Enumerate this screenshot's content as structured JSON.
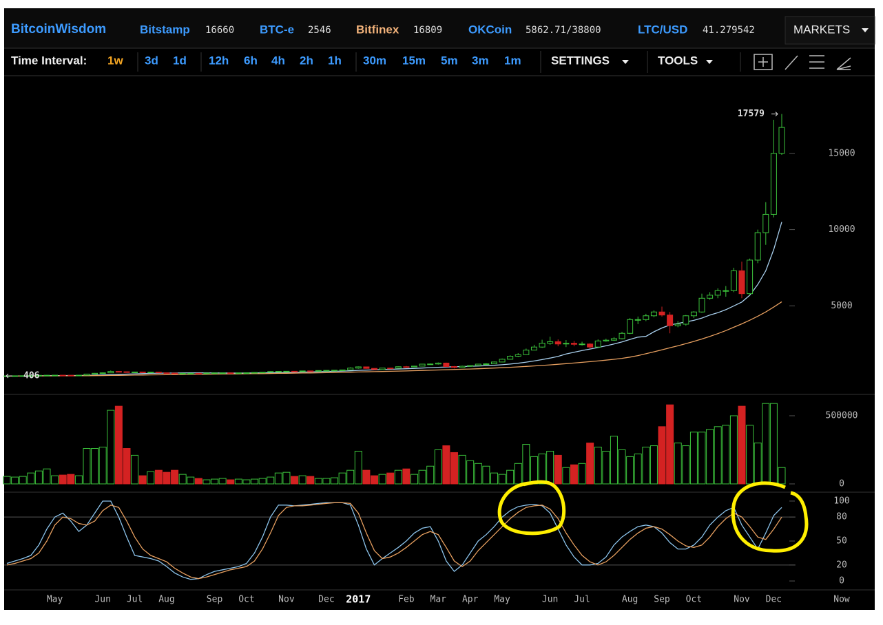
{
  "header": {
    "brand": "BitcoinWisdom",
    "tickers": [
      {
        "name": "Bitstamp",
        "price": 16660
      },
      {
        "name": "BTC-e",
        "price": 2546
      },
      {
        "name": "Bitfinex",
        "price": 16809
      },
      {
        "name": "OKCoin",
        "price": "5862.71/38800"
      },
      {
        "name": "LTC/USD",
        "price": 41.279542
      }
    ],
    "markets": "MARKETS"
  },
  "toolbar": {
    "label": "Time Interval:",
    "intervals": [
      "1w",
      "3d",
      "1d",
      "12h",
      "6h",
      "4h",
      "2h",
      "1h",
      "30m",
      "15m",
      "5m",
      "3m",
      "1m"
    ],
    "settings": "SETTINGS",
    "tools": "TOOLS"
  },
  "chart_data": [
    {
      "type": "candlestick",
      "up_color": "#3cc43c",
      "down_color": "#d42222",
      "ylim": [
        -760,
        20000
      ],
      "yticks": [
        5000,
        10000,
        15000
      ],
      "last_label": 17579,
      "first_label": 406,
      "open": [
        405,
        410,
        416,
        420,
        426,
        445,
        452,
        455,
        450,
        445,
        455,
        530,
        580,
        610,
        700,
        680,
        660,
        665,
        650,
        655,
        610,
        590,
        570,
        575,
        578,
        572,
        598,
        606,
        608,
        604,
        608,
        614,
        635,
        650,
        695,
        705,
        712,
        705,
        735,
        730,
        760,
        770,
        780,
        800,
        920,
        1000,
        900,
        825,
        920,
        915,
        1010,
        1000,
        1050,
        1180,
        1190,
        1250,
        1020,
        960,
        1040,
        1090,
        1180,
        1200,
        1320,
        1500,
        1700,
        1800,
        2100,
        2300,
        2550,
        2650,
        2500,
        2550,
        2480,
        2500,
        2300,
        2700,
        2750,
        2850,
        3200,
        4100,
        4100,
        4350,
        4600,
        4400,
        3700,
        3800,
        4350,
        4600,
        5500,
        5700,
        6000,
        6000,
        7300,
        5800,
        8000,
        9800,
        11000,
        15000
      ],
      "high": [
        420,
        422,
        425,
        430,
        460,
        465,
        462,
        462,
        458,
        465,
        545,
        600,
        640,
        760,
        720,
        690,
        680,
        675,
        665,
        660,
        615,
        600,
        585,
        590,
        585,
        610,
        615,
        615,
        612,
        615,
        620,
        640,
        660,
        715,
        720,
        725,
        720,
        745,
        750,
        775,
        780,
        790,
        815,
        970,
        1030,
        1020,
        910,
        930,
        935,
        1030,
        1060,
        1070,
        1200,
        1220,
        1290,
        1280,
        1060,
        1080,
        1110,
        1200,
        1240,
        1350,
        1550,
        1760,
        1900,
        2200,
        2450,
        2780,
        2980,
        2800,
        2760,
        2700,
        2650,
        2550,
        2800,
        2850,
        2950,
        3300,
        4200,
        4300,
        4480,
        4700,
        4950,
        4600,
        4000,
        4400,
        4650,
        5800,
        5900,
        6150,
        6300,
        7500,
        7900,
        8100,
        10000,
        11800,
        17200,
        17579
      ],
      "low": [
        400,
        404,
        412,
        415,
        420,
        440,
        445,
        440,
        438,
        440,
        450,
        520,
        570,
        600,
        640,
        640,
        650,
        645,
        645,
        600,
        585,
        560,
        560,
        570,
        565,
        570,
        595,
        600,
        598,
        600,
        605,
        610,
        630,
        645,
        690,
        700,
        695,
        700,
        725,
        725,
        755,
        765,
        775,
        790,
        880,
        880,
        800,
        810,
        900,
        905,
        990,
        985,
        1040,
        1160,
        1150,
        1000,
        900,
        950,
        1030,
        1080,
        1160,
        1190,
        1300,
        1480,
        1650,
        1780,
        2080,
        2250,
        2450,
        2350,
        2300,
        2350,
        2400,
        2200,
        2250,
        2650,
        2700,
        2800,
        3150,
        3800,
        4000,
        4250,
        4300,
        3200,
        3600,
        3700,
        4200,
        4550,
        5400,
        5500,
        5600,
        5900,
        5500,
        5700,
        7800,
        9000,
        10800,
        14900
      ],
      "close": [
        410,
        416,
        420,
        426,
        445,
        452,
        455,
        450,
        445,
        455,
        530,
        580,
        610,
        700,
        680,
        660,
        665,
        650,
        655,
        610,
        590,
        570,
        575,
        578,
        572,
        598,
        606,
        608,
        604,
        608,
        614,
        635,
        650,
        695,
        705,
        712,
        705,
        735,
        730,
        760,
        770,
        780,
        800,
        920,
        1000,
        900,
        825,
        920,
        915,
        1010,
        1000,
        1050,
        1180,
        1190,
        1250,
        1020,
        960,
        1040,
        1090,
        1180,
        1200,
        1320,
        1500,
        1700,
        1800,
        2100,
        2300,
        2550,
        2650,
        2500,
        2550,
        2480,
        2500,
        2300,
        2700,
        2750,
        2850,
        3200,
        4100,
        4100,
        4350,
        4600,
        4400,
        3700,
        3800,
        4350,
        4600,
        5500,
        5700,
        6000,
        6000,
        7300,
        5800,
        8000,
        9800,
        11000,
        15000,
        16700
      ],
      "lines": [
        {
          "color": "#a9d0ee",
          "values": [
            405,
            408,
            411,
            414,
            418,
            423,
            428,
            432,
            435,
            438,
            446,
            458,
            472,
            492,
            510,
            528,
            545,
            560,
            574,
            585,
            594,
            600,
            604,
            607,
            608,
            606,
            602,
            600,
            598,
            596,
            598,
            602,
            608,
            615,
            624,
            634,
            645,
            658,
            670,
            684,
            697,
            712,
            726,
            745,
            768,
            788,
            805,
            822,
            840,
            860,
            880,
            900,
            925,
            950,
            975,
            992,
            1008,
            1022,
            1040,
            1060,
            1080,
            1105,
            1140,
            1185,
            1240,
            1310,
            1390,
            1480,
            1580,
            1690,
            1850,
            1960,
            2070,
            2170,
            2270,
            2380,
            2500,
            2640,
            2800,
            2950,
            3000,
            3300,
            3550,
            3750,
            3850,
            3950,
            4050,
            4200,
            4400,
            4550,
            4750,
            5000,
            5250,
            5700,
            6400,
            7300,
            8700,
            10500
          ]
        },
        {
          "color": "#e8a060",
          "values": [
            400,
            401,
            402,
            403,
            405,
            407,
            409,
            412,
            415,
            418,
            422,
            427,
            433,
            440,
            447,
            454,
            461,
            468,
            475,
            482,
            488,
            494,
            500,
            506,
            512,
            518,
            524,
            530,
            536,
            542,
            548,
            554,
            560,
            567,
            574,
            581,
            589,
            597,
            605,
            614,
            623,
            632,
            642,
            653,
            665,
            677,
            688,
            699,
            711,
            723,
            736,
            750,
            765,
            780,
            796,
            812,
            828,
            845,
            862,
            880,
            900,
            922,
            946,
            972,
            1000,
            1030,
            1062,
            1096,
            1132,
            1170,
            1210,
            1252,
            1296,
            1342,
            1390,
            1442,
            1498,
            1560,
            1640,
            1740,
            1860,
            1990,
            2120,
            2250,
            2380,
            2520,
            2670,
            2830,
            3000,
            3180,
            3380,
            3600,
            3820,
            4060,
            4320,
            4600,
            4920,
            5270
          ]
        }
      ]
    },
    {
      "type": "volume",
      "ylim": [
        -55600,
        651500
      ],
      "yticks": [
        0,
        500000
      ],
      "values": [
        55000,
        50000,
        55000,
        80000,
        95000,
        110000,
        60000,
        65000,
        70000,
        60000,
        260000,
        260000,
        270000,
        540000,
        570000,
        260000,
        210000,
        60000,
        90000,
        100000,
        85000,
        100000,
        70000,
        50000,
        40000,
        30000,
        35000,
        40000,
        30000,
        35000,
        30000,
        35000,
        40000,
        50000,
        80000,
        85000,
        55000,
        60000,
        55000,
        40000,
        40000,
        45000,
        80000,
        100000,
        240000,
        100000,
        60000,
        70000,
        80000,
        100000,
        110000,
        70000,
        100000,
        130000,
        250000,
        280000,
        230000,
        210000,
        170000,
        150000,
        130000,
        80000,
        70000,
        100000,
        150000,
        290000,
        200000,
        220000,
        240000,
        210000,
        120000,
        140000,
        150000,
        300000,
        270000,
        240000,
        350000,
        250000,
        200000,
        220000,
        270000,
        280000,
        420000,
        580000,
        300000,
        280000,
        380000,
        380000,
        400000,
        420000,
        430000,
        500000,
        570000,
        430000,
        300000,
        590000,
        590000,
        120000
      ]
    },
    {
      "type": "stochastic",
      "ylim": [
        -10.3,
        110.3
      ],
      "yticks": [
        0,
        20,
        50,
        80,
        100
      ],
      "grid": [
        20,
        80
      ],
      "categories": [
        null,
        null,
        null,
        null,
        null,
        null,
        "May",
        null,
        null,
        null,
        null,
        null,
        "Jun",
        null,
        null,
        null,
        "Jul",
        null,
        null,
        null,
        "Aug",
        null,
        null,
        null,
        null,
        null,
        "Sep",
        null,
        null,
        null,
        "Oct",
        null,
        null,
        null,
        null,
        "Nov",
        null,
        null,
        null,
        null,
        "Dec",
        null,
        null,
        null,
        "2017",
        null,
        null,
        null,
        null,
        null,
        "Feb",
        null,
        null,
        null,
        "Mar",
        null,
        null,
        null,
        "Apr",
        null,
        null,
        null,
        "May",
        null,
        null,
        null,
        null,
        null,
        "Jun",
        null,
        null,
        null,
        "Jul",
        null,
        null,
        null,
        null,
        null,
        "Aug",
        null,
        null,
        null,
        "Sep",
        null,
        null,
        null,
        "Oct",
        null,
        null,
        null,
        null,
        null,
        "Nov",
        null,
        null,
        null,
        "Dec",
        null
      ],
      "now_label": "Now",
      "series": [
        {
          "color": "#8cc4ec",
          "values": [
            22,
            25,
            28,
            32,
            45,
            65,
            80,
            85,
            75,
            62,
            70,
            85,
            100,
            100,
            80,
            55,
            32,
            30,
            28,
            25,
            18,
            10,
            5,
            2,
            3,
            8,
            12,
            14,
            16,
            18,
            22,
            35,
            55,
            80,
            95,
            95,
            94,
            95,
            96,
            97,
            98,
            98,
            98,
            95,
            70,
            40,
            20,
            28,
            35,
            42,
            50,
            60,
            66,
            68,
            50,
            25,
            12,
            20,
            35,
            50,
            58,
            68,
            80,
            88,
            93,
            95,
            96,
            94,
            85,
            65,
            45,
            30,
            20,
            20,
            22,
            30,
            45,
            55,
            62,
            68,
            70,
            68,
            60,
            48,
            40,
            40,
            45,
            55,
            70,
            80,
            88,
            92,
            70,
            55,
            40,
            60,
            82,
            92
          ]
        },
        {
          "color": "#e8a060",
          "values": [
            20,
            22,
            25,
            28,
            35,
            50,
            70,
            80,
            78,
            72,
            70,
            75,
            88,
            95,
            92,
            75,
            55,
            40,
            32,
            28,
            24,
            16,
            10,
            5,
            3,
            5,
            8,
            11,
            14,
            16,
            18,
            25,
            40,
            60,
            82,
            92,
            94,
            94,
            95,
            96,
            97,
            98,
            98,
            97,
            85,
            60,
            38,
            28,
            30,
            35,
            42,
            50,
            58,
            62,
            58,
            42,
            25,
            18,
            25,
            38,
            48,
            58,
            68,
            78,
            86,
            92,
            94,
            95,
            90,
            78,
            60,
            45,
            32,
            24,
            20,
            24,
            32,
            42,
            52,
            60,
            66,
            68,
            65,
            58,
            50,
            44,
            42,
            45,
            55,
            68,
            78,
            85,
            80,
            68,
            55,
            52,
            65,
            80
          ]
        }
      ]
    }
  ]
}
